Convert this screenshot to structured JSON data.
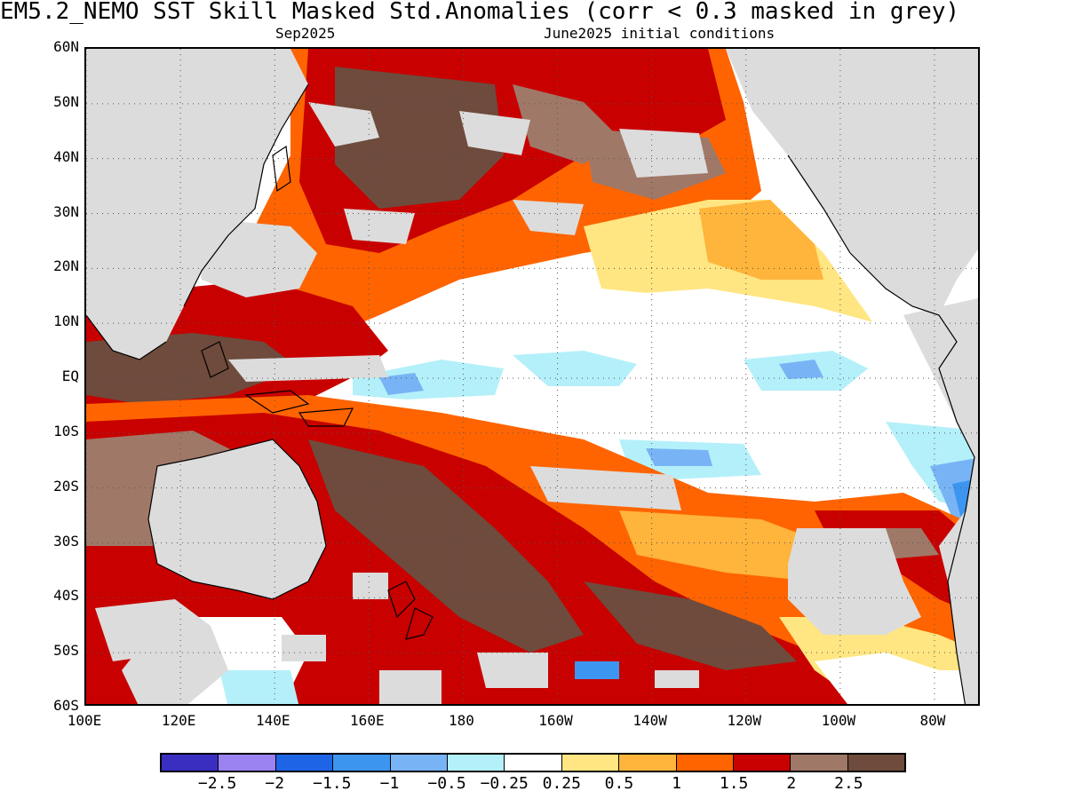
{
  "header": {
    "title": "EM5.2_NEMO  SST Skill Masked Std.Anomalies (corr < 0.3 masked in grey)",
    "target_month": "Sep2025",
    "init_conditions": "June2025 initial conditions"
  },
  "axes": {
    "lat_labels": [
      "60N",
      "50N",
      "40N",
      "30N",
      "20N",
      "10N",
      "EQ",
      "10S",
      "20S",
      "30S",
      "40S",
      "50S",
      "60S"
    ],
    "lon_labels": [
      "100E",
      "120E",
      "140E",
      "160E",
      "180",
      "160W",
      "140W",
      "120W",
      "100W",
      "80W"
    ]
  },
  "map": {
    "lon_range": [
      100,
      290
    ],
    "lat_range": [
      -60,
      60
    ],
    "mask_color": "#dcdcdc",
    "land_outline_color": "#000000"
  },
  "colorbar": {
    "colors": [
      "#3a2ec0",
      "#9a82f0",
      "#1e64e6",
      "#3c96f0",
      "#78b4f5",
      "#b4f0fa",
      "#ffffff",
      "#ffe682",
      "#ffb43c",
      "#ff6400",
      "#c80000",
      "#a07868",
      "#6e4b3c"
    ],
    "labels": [
      "−2.5",
      "−2",
      "−1.5",
      "−1",
      "−0.5",
      "−0.25",
      "0.25",
      "0.5",
      "1",
      "1.5",
      "2",
      "2.5"
    ]
  }
}
